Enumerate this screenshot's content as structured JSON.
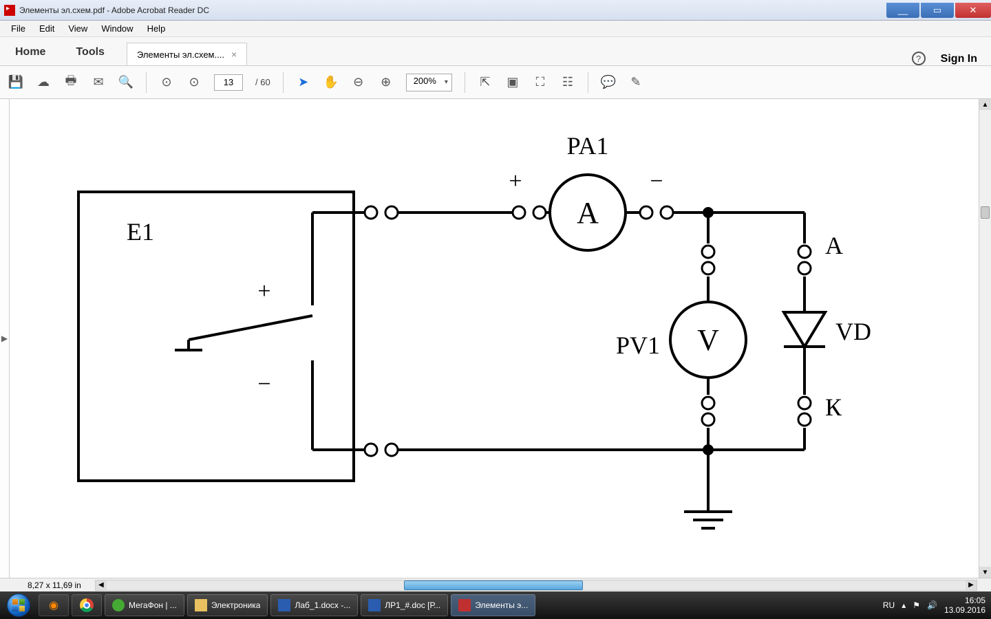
{
  "window": {
    "title": "Элементы эл.схем.pdf - Adobe Acrobat Reader DC"
  },
  "menu": {
    "file": "File",
    "edit": "Edit",
    "view": "View",
    "window": "Window",
    "help": "Help"
  },
  "tabs": {
    "home": "Home",
    "tools": "Tools",
    "doc": "Элементы эл.схем....",
    "signin": "Sign In"
  },
  "toolbar": {
    "page_current": "13",
    "page_total": "/ 60",
    "zoom": "200%"
  },
  "status": {
    "dims": "8,27 x 11,69 in"
  },
  "circuit": {
    "labels": {
      "E1": "E1",
      "PA1": "PA1",
      "A": "A",
      "plus": "+",
      "minus": "−",
      "PV1": "PV1",
      "V": "V",
      "VD": "VD",
      "Anode": "А",
      "Cathode": "К",
      "src_plus": "+",
      "src_minus": "−"
    },
    "stroke": "#000000",
    "stroke_width": 4,
    "term_radius": 9,
    "meter_radius": 55,
    "font_size_label": 36,
    "font_size_meter": 44,
    "font_size_sign": 34
  },
  "taskbar": {
    "apps": [
      {
        "label": "МегаФон | ...",
        "cls": "mega"
      },
      {
        "label": "Электроника",
        "cls": "fold"
      },
      {
        "label": "Лаб_1.docx -...",
        "cls": "word"
      },
      {
        "label": "ЛР1_#.doc [Р...",
        "cls": "word"
      },
      {
        "label": "Элементы э...",
        "cls": "pdf",
        "active": true
      }
    ],
    "lang": "RU",
    "time": "16:05",
    "date": "13.09.2016"
  }
}
